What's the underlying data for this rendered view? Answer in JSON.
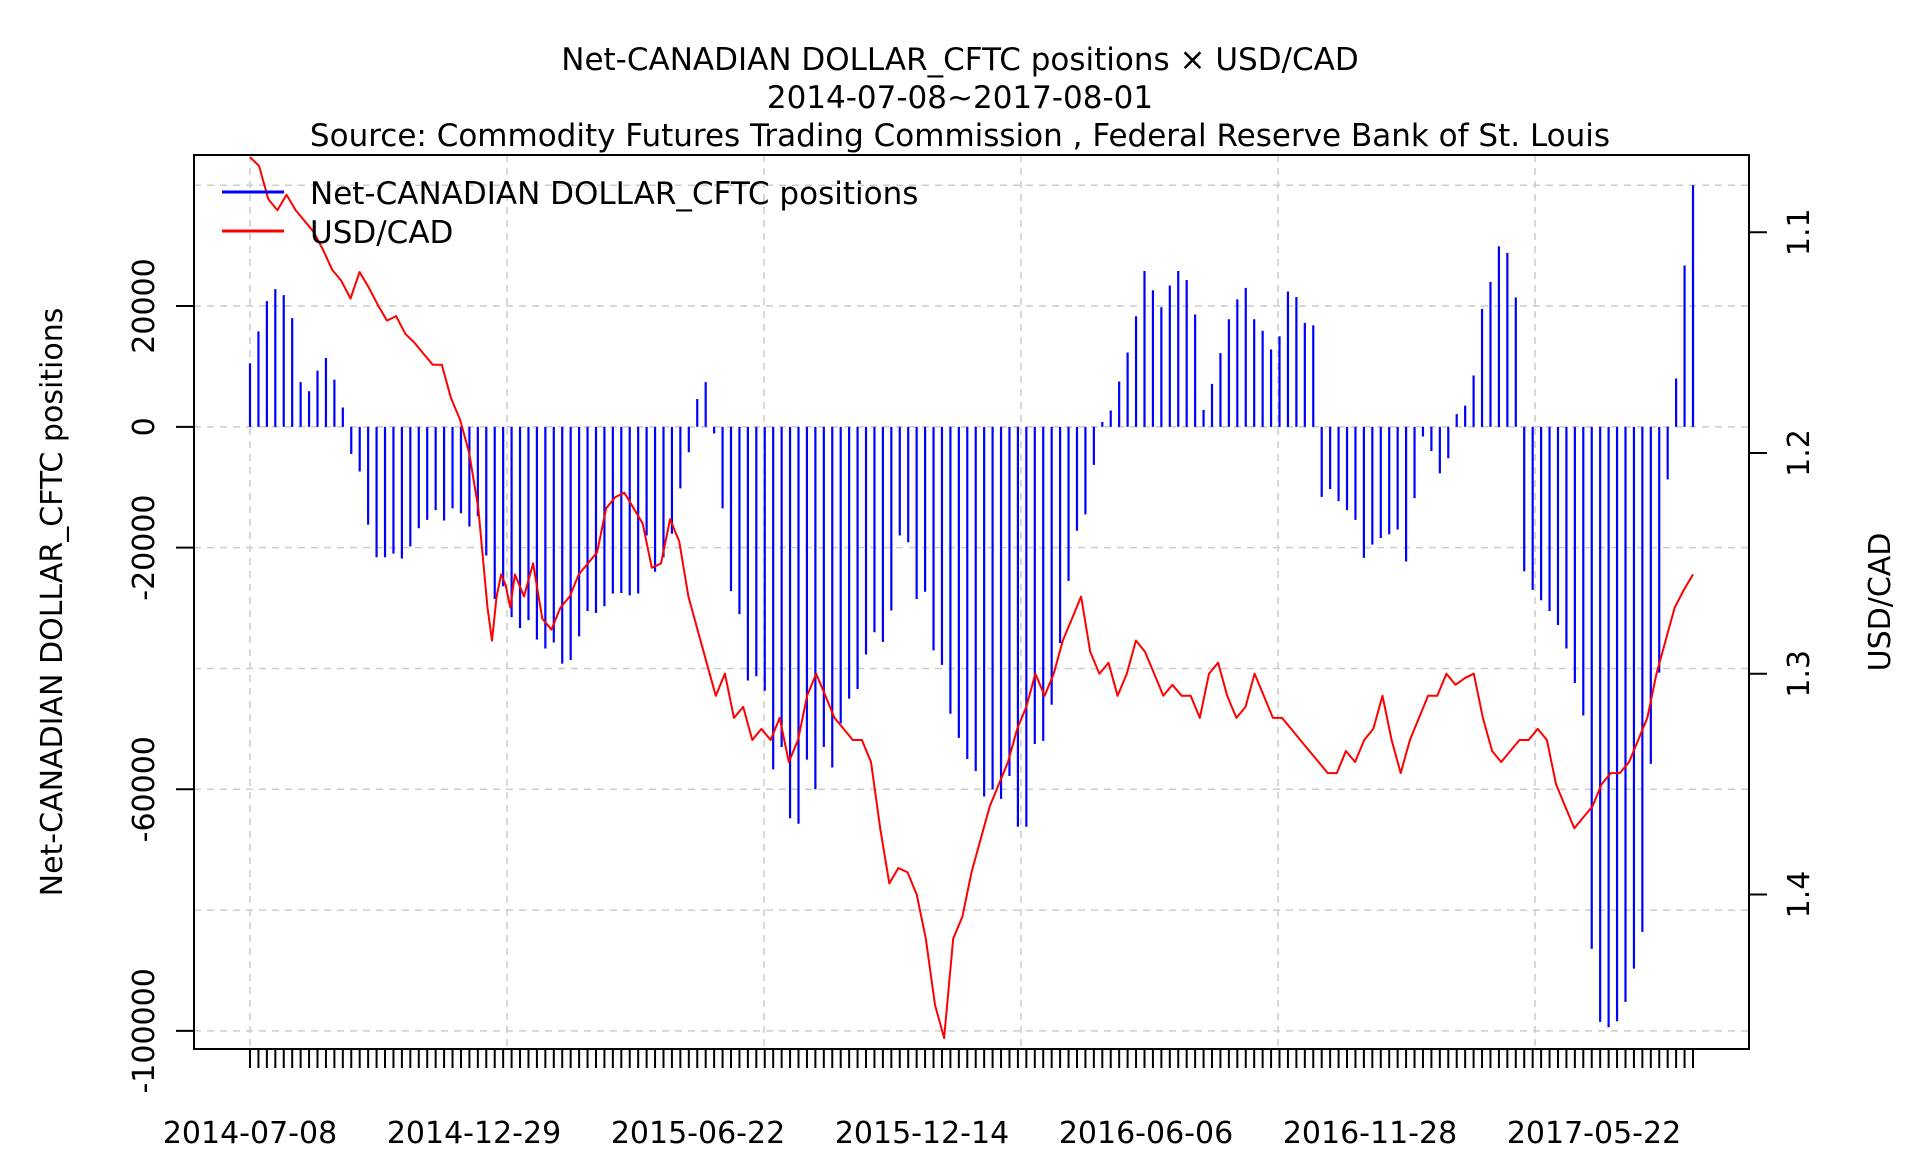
{
  "chart_data": {
    "type": "bar+line",
    "title": "Net-CANADIAN DOLLAR_CFTC positions × USD/CAD",
    "subtitle": "2014-07-08~2017-08-01",
    "source": "Source: Commodity Futures Trading Commission , Federal Reserve Bank of St. Louis",
    "ylabel_left": "Net-CANADIAN DOLLAR_CFTC positions",
    "ylabel_right": "USD/CAD",
    "x_tick_labels": [
      "2014-07-08",
      "2014-12-29",
      "2015-06-22",
      "2015-12-14",
      "2016-06-06",
      "2016-11-28",
      "2017-05-22"
    ],
    "y_left_ticks": [
      20000,
      0,
      -20000,
      -60000,
      -100000
    ],
    "y_left_tick_labels": [
      "20000",
      "0",
      "-20000",
      "-60000",
      "-100000"
    ],
    "ylim_left": [
      -103000,
      45000
    ],
    "y_right_ticks": [
      1.1,
      1.2,
      1.3,
      1.4
    ],
    "y_right_tick_labels": [
      "1.1",
      "1.2",
      "1.3",
      "1.4"
    ],
    "ylim_right": [
      1.47,
      1.065
    ],
    "grid": true,
    "legend_position": "top-left",
    "series": [
      {
        "name": "Net-CANADIAN DOLLAR_CFTC positions",
        "kind": "bar",
        "color": "#0000ff",
        "values": [
          10500,
          15800,
          20800,
          22800,
          21800,
          18000,
          7400,
          5900,
          9300,
          11400,
          7800,
          3200,
          -4500,
          -7400,
          -16200,
          -21600,
          -21600,
          -21000,
          -21800,
          -19800,
          -16800,
          -15400,
          -13800,
          -15500,
          -13500,
          -14300,
          -16500,
          -14800,
          -21300,
          -28500,
          -26400,
          -31500,
          -33300,
          -32000,
          -35200,
          -36700,
          -35700,
          -39200,
          -38600,
          -34700,
          -30500,
          -30800,
          -29700,
          -27600,
          -27500,
          -27900,
          -27600,
          -18000,
          -24000,
          -21600,
          -17700,
          -10200,
          -4200,
          4600,
          7400,
          -1100,
          -13500,
          -27200,
          -31000,
          -42000,
          -41300,
          -43700,
          -56700,
          -53000,
          -64800,
          -65700,
          -55100,
          -60000,
          -53000,
          -56400,
          -49100,
          -45000,
          -43400,
          -37700,
          -34000,
          -35600,
          -30400,
          -18000,
          -19100,
          -28500,
          -27300,
          -37000,
          -39400,
          -47500,
          -51500,
          -55000,
          -57000,
          -61200,
          -60000,
          -61600,
          -57800,
          -66200,
          -66200,
          -52500,
          -52000,
          -46000,
          -35800,
          -25500,
          -17200,
          -14500,
          -6300,
          800,
          2700,
          7500,
          12300,
          18300,
          25800,
          22600,
          19800,
          23400,
          25800,
          24300,
          18600,
          2800,
          7100,
          12200,
          17800,
          21100,
          23000,
          17800,
          15900,
          12800,
          15000,
          22400,
          21500,
          17200,
          16800,
          -11600,
          -10300,
          -12300,
          -13800,
          -15400,
          -21700,
          -19500,
          -18400,
          -17800,
          -17000,
          -22300,
          -11800,
          -1600,
          -4000,
          -7700,
          -5200,
          2100,
          3500,
          8500,
          19500,
          24000,
          29900,
          28800,
          21400,
          -23900,
          -27000,
          -28700,
          -30500,
          -32800,
          -36700,
          -42400,
          -47800,
          -86400,
          -98500,
          -99400,
          -98400,
          -95200,
          -89700,
          -83600,
          -55800,
          -40700,
          -8700,
          8000,
          26700,
          40000
        ]
      },
      {
        "name": "USD/CAD",
        "kind": "line",
        "color": "#ff0000",
        "points": [
          [
            0,
            1.066
          ],
          [
            2,
            1.07
          ],
          [
            4,
            1.085
          ],
          [
            6,
            1.09
          ],
          [
            8,
            1.083
          ],
          [
            10,
            1.09
          ],
          [
            12,
            1.095
          ],
          [
            14,
            1.1
          ],
          [
            16,
            1.108
          ],
          [
            18,
            1.117
          ],
          [
            20,
            1.122
          ],
          [
            22,
            1.13
          ],
          [
            24,
            1.118
          ],
          [
            26,
            1.125
          ],
          [
            28,
            1.133
          ],
          [
            30,
            1.14
          ],
          [
            32,
            1.138
          ],
          [
            34,
            1.146
          ],
          [
            36,
            1.15
          ],
          [
            38,
            1.155
          ],
          [
            40,
            1.16
          ],
          [
            42,
            1.16
          ],
          [
            44,
            1.175
          ],
          [
            46,
            1.185
          ],
          [
            48,
            1.2
          ],
          [
            50,
            1.225
          ],
          [
            52,
            1.27
          ],
          [
            53,
            1.285
          ],
          [
            54,
            1.265
          ],
          [
            55,
            1.255
          ],
          [
            56,
            1.26
          ],
          [
            57,
            1.27
          ],
          [
            58,
            1.255
          ],
          [
            60,
            1.265
          ],
          [
            62,
            1.25
          ],
          [
            64,
            1.275
          ],
          [
            66,
            1.28
          ],
          [
            68,
            1.27
          ],
          [
            70,
            1.265
          ],
          [
            72,
            1.255
          ],
          [
            74,
            1.25
          ],
          [
            76,
            1.245
          ],
          [
            78,
            1.225
          ],
          [
            80,
            1.22
          ],
          [
            82,
            1.218
          ],
          [
            84,
            1.225
          ],
          [
            86,
            1.232
          ],
          [
            88,
            1.252
          ],
          [
            90,
            1.25
          ],
          [
            92,
            1.23
          ],
          [
            94,
            1.24
          ],
          [
            96,
            1.265
          ],
          [
            98,
            1.28
          ],
          [
            100,
            1.295
          ],
          [
            102,
            1.31
          ],
          [
            104,
            1.3
          ],
          [
            106,
            1.32
          ],
          [
            108,
            1.315
          ],
          [
            110,
            1.33
          ],
          [
            112,
            1.325
          ],
          [
            114,
            1.33
          ],
          [
            116,
            1.32
          ],
          [
            118,
            1.34
          ],
          [
            120,
            1.33
          ],
          [
            122,
            1.31
          ],
          [
            124,
            1.3
          ],
          [
            126,
            1.31
          ],
          [
            128,
            1.32
          ],
          [
            130,
            1.325
          ],
          [
            132,
            1.33
          ],
          [
            134,
            1.33
          ],
          [
            136,
            1.34
          ],
          [
            138,
            1.37
          ],
          [
            140,
            1.395
          ],
          [
            142,
            1.388
          ],
          [
            144,
            1.39
          ],
          [
            146,
            1.4
          ],
          [
            148,
            1.42
          ],
          [
            150,
            1.45
          ],
          [
            152,
            1.465
          ],
          [
            154,
            1.42
          ],
          [
            156,
            1.41
          ],
          [
            158,
            1.39
          ],
          [
            160,
            1.375
          ],
          [
            162,
            1.36
          ],
          [
            164,
            1.35
          ],
          [
            166,
            1.34
          ],
          [
            168,
            1.325
          ],
          [
            170,
            1.315
          ],
          [
            172,
            1.3
          ],
          [
            174,
            1.31
          ],
          [
            176,
            1.3
          ],
          [
            178,
            1.285
          ],
          [
            180,
            1.275
          ],
          [
            182,
            1.265
          ],
          [
            184,
            1.29
          ],
          [
            186,
            1.3
          ],
          [
            188,
            1.295
          ],
          [
            190,
            1.31
          ],
          [
            192,
            1.3
          ],
          [
            194,
            1.285
          ],
          [
            196,
            1.29
          ],
          [
            198,
            1.3
          ],
          [
            200,
            1.31
          ],
          [
            202,
            1.305
          ],
          [
            204,
            1.31
          ],
          [
            206,
            1.31
          ],
          [
            208,
            1.32
          ],
          [
            210,
            1.3
          ],
          [
            212,
            1.295
          ],
          [
            214,
            1.31
          ],
          [
            216,
            1.32
          ],
          [
            218,
            1.315
          ],
          [
            220,
            1.3
          ],
          [
            222,
            1.31
          ],
          [
            224,
            1.32
          ],
          [
            226,
            1.32
          ],
          [
            228,
            1.325
          ],
          [
            230,
            1.33
          ],
          [
            232,
            1.335
          ],
          [
            234,
            1.34
          ],
          [
            236,
            1.345
          ],
          [
            238,
            1.345
          ],
          [
            240,
            1.335
          ],
          [
            242,
            1.34
          ],
          [
            244,
            1.33
          ],
          [
            246,
            1.325
          ],
          [
            248,
            1.31
          ],
          [
            250,
            1.33
          ],
          [
            252,
            1.345
          ],
          [
            254,
            1.33
          ],
          [
            256,
            1.32
          ],
          [
            258,
            1.31
          ],
          [
            260,
            1.31
          ],
          [
            262,
            1.3
          ],
          [
            264,
            1.305
          ],
          [
            266,
            1.302
          ],
          [
            268,
            1.3
          ],
          [
            270,
            1.32
          ],
          [
            272,
            1.335
          ],
          [
            274,
            1.34
          ],
          [
            276,
            1.335
          ],
          [
            278,
            1.33
          ],
          [
            280,
            1.33
          ],
          [
            282,
            1.325
          ],
          [
            284,
            1.33
          ],
          [
            286,
            1.35
          ],
          [
            288,
            1.36
          ],
          [
            290,
            1.37
          ],
          [
            292,
            1.365
          ],
          [
            294,
            1.36
          ],
          [
            296,
            1.35
          ],
          [
            298,
            1.345
          ],
          [
            300,
            1.345
          ],
          [
            302,
            1.34
          ],
          [
            304,
            1.33
          ],
          [
            306,
            1.32
          ],
          [
            308,
            1.3
          ],
          [
            310,
            1.285
          ],
          [
            312,
            1.27
          ],
          [
            314,
            1.262
          ],
          [
            316,
            1.255
          ]
        ]
      }
    ]
  }
}
